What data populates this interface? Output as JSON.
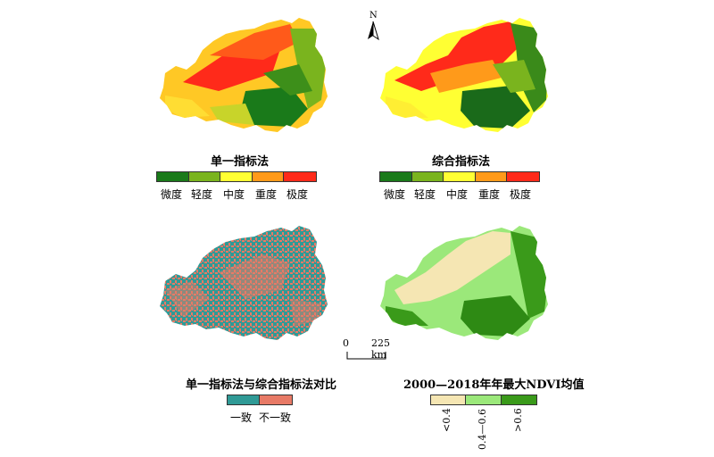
{
  "maps": {
    "single": {
      "title": "单一指标法",
      "legend": [
        {
          "label": "微度",
          "color": "#1a7a1a"
        },
        {
          "label": "轻度",
          "color": "#7ab41e"
        },
        {
          "label": "中度",
          "color": "#ffff33"
        },
        {
          "label": "重度",
          "color": "#ff9a1a"
        },
        {
          "label": "极度",
          "color": "#ff2a1a"
        }
      ]
    },
    "composite": {
      "title": "综合指标法",
      "legend": [
        {
          "label": "微度",
          "color": "#1a7a1a"
        },
        {
          "label": "轻度",
          "color": "#7ab41e"
        },
        {
          "label": "中度",
          "color": "#ffff33"
        },
        {
          "label": "重度",
          "color": "#ff9a1a"
        },
        {
          "label": "极度",
          "color": "#ff2a1a"
        }
      ]
    },
    "comparison": {
      "title": "单一指标法与综合指标法对比",
      "legend": [
        {
          "label": "一致",
          "color": "#2f9a96"
        },
        {
          "label": "不一致",
          "color": "#e87a66"
        }
      ]
    },
    "ndvi": {
      "title": "2000—2018年年最大NDVI均值",
      "legend": [
        {
          "label": "<0.4",
          "color": "#f5e6b3"
        },
        {
          "label": "0.4—0.6",
          "color": "#9be87a"
        },
        {
          "label": ">0.6",
          "color": "#3a9a1a"
        }
      ]
    }
  },
  "north_arrow": {
    "label": "N"
  },
  "scale_bar": {
    "zero": "0",
    "distance": "225 km"
  }
}
